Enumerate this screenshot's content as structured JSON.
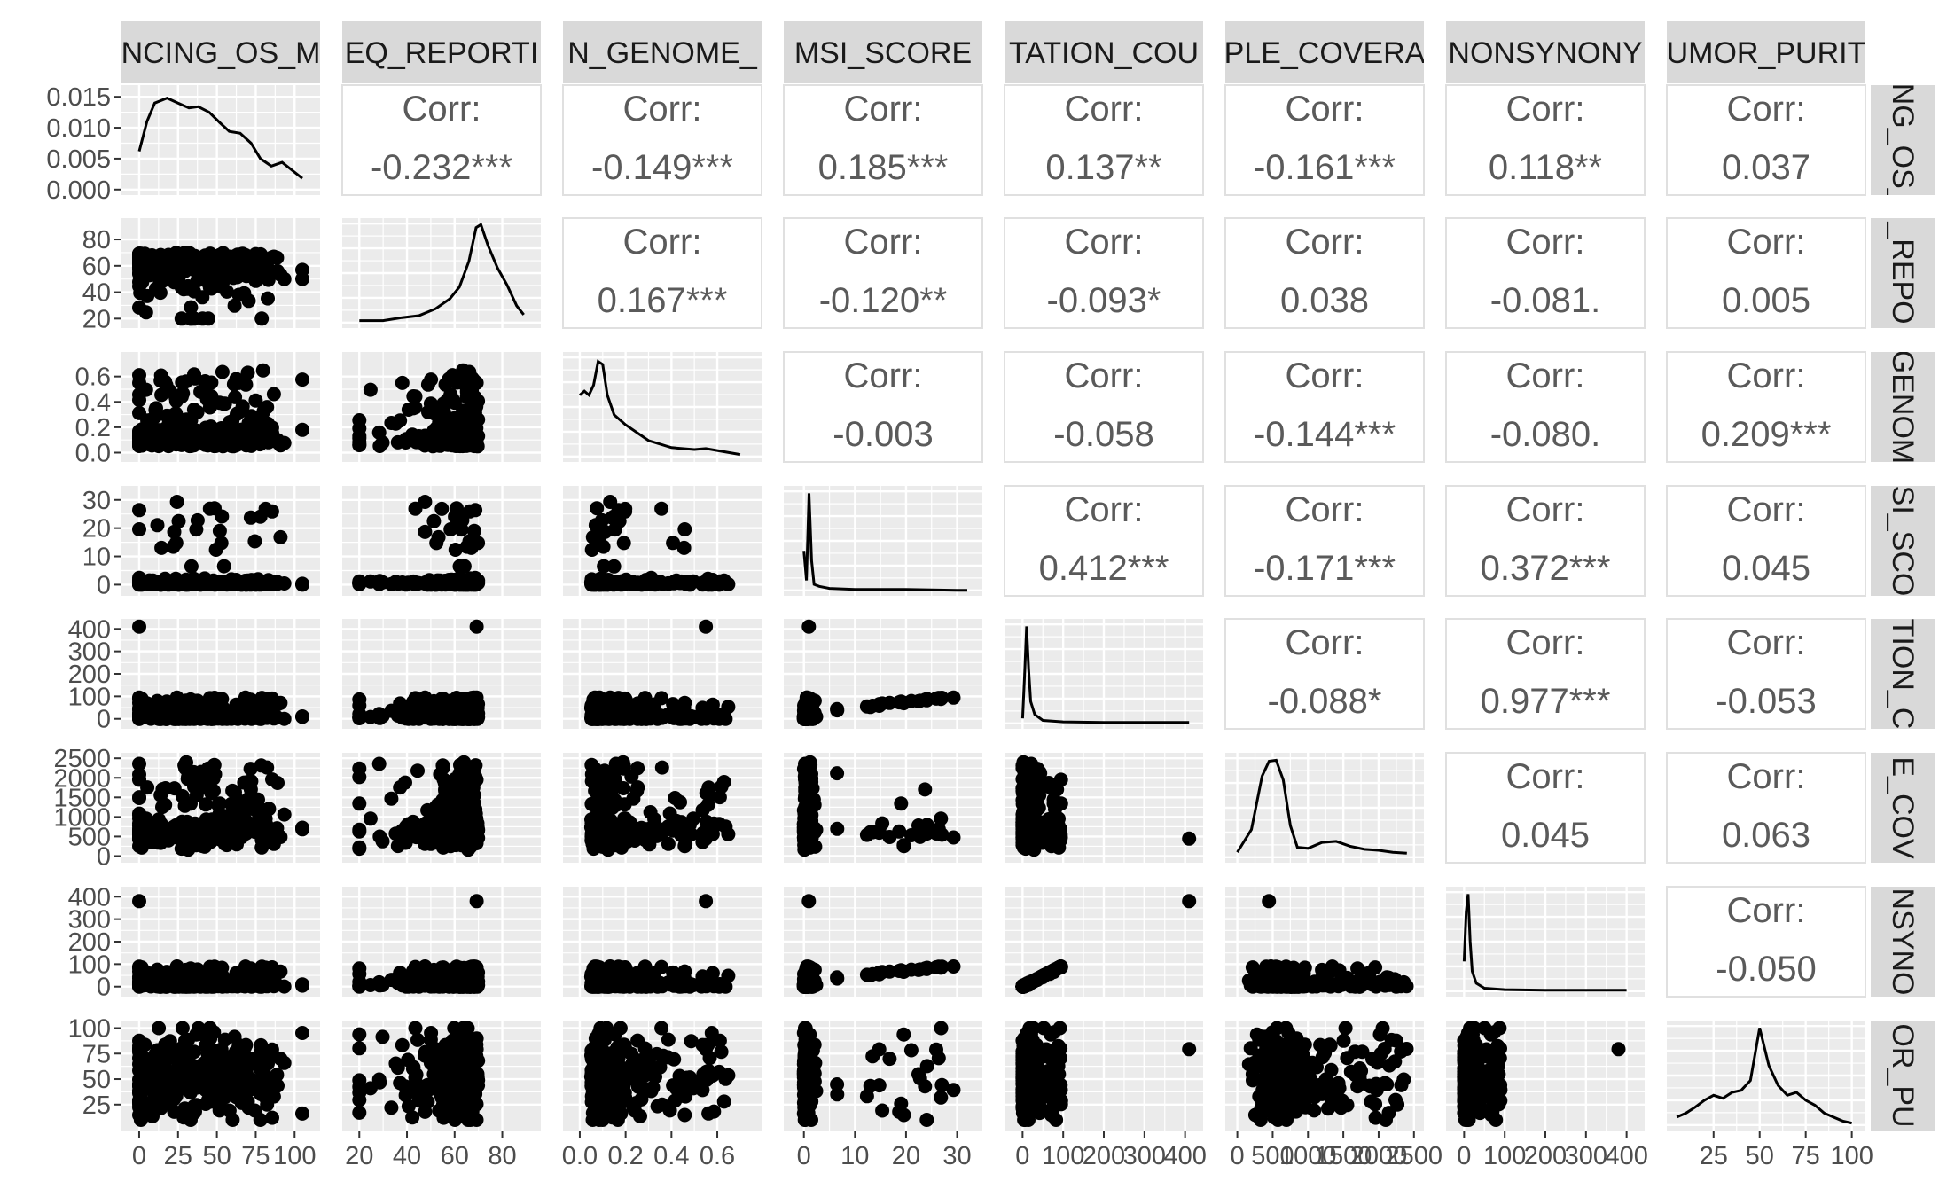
{
  "chart_data": {
    "type": "pairs",
    "title": "",
    "variables": [
      {
        "label": "NCING_OS_M",
        "row_label": "ING_OS_",
        "range": [
          -5,
          110
        ],
        "ticks": [
          0,
          25,
          50,
          75,
          100
        ],
        "tick_labels": [
          "0",
          "25",
          "50",
          "75",
          "100"
        ]
      },
      {
        "label": "EQ_REPORTI",
        "row_label": "_REPO",
        "range": [
          17,
          92
        ],
        "ticks": [
          20,
          40,
          60,
          80
        ],
        "tick_labels": [
          "20",
          "40",
          "60",
          "80"
        ]
      },
      {
        "label": "N_GENOME_",
        "row_label": "GENOM",
        "range": [
          -0.03,
          0.75
        ],
        "ticks": [
          0.0,
          0.2,
          0.4,
          0.6
        ],
        "tick_labels": [
          "0.0",
          "0.2",
          "0.4",
          "0.6"
        ]
      },
      {
        "label": "MSI_SCORE",
        "row_label": "SI_SCO",
        "range": [
          -2,
          33
        ],
        "ticks": [
          0,
          10,
          20,
          30
        ],
        "tick_labels": [
          "0",
          "10",
          "20",
          "30"
        ]
      },
      {
        "label": "TATION_COU",
        "row_label": "TION_C",
        "range": [
          -20,
          420
        ],
        "ticks": [
          0,
          100,
          200,
          300,
          400
        ],
        "tick_labels": [
          "0",
          "100",
          "200",
          "300",
          "400"
        ]
      },
      {
        "label": "PLE_COVERA",
        "row_label": "E_COV",
        "range": [
          -30,
          2500
        ],
        "ticks": [
          0,
          500,
          1000,
          1500,
          2000,
          2500
        ],
        "tick_labels": [
          "0",
          "500",
          "1000",
          "1500",
          "2000",
          "2500"
        ]
      },
      {
        "label": "NONSYNONY",
        "row_label": "NSYNO",
        "range": [
          -20,
          420
        ],
        "ticks": [
          0,
          100,
          200,
          300,
          400
        ],
        "tick_labels": [
          "0",
          "100",
          "200",
          "300",
          "400"
        ]
      },
      {
        "label": "UMOR_PURIT",
        "row_label": "OR_PU",
        "range": [
          5,
          102
        ],
        "ticks": [
          25,
          50,
          75,
          100
        ],
        "tick_labels": [
          "25",
          "50",
          "75",
          "100"
        ]
      }
    ],
    "diag_density_axis": {
      "range": [
        0,
        0.016
      ],
      "ticks": [
        0.0,
        0.005,
        0.01,
        0.015
      ],
      "tick_labels": [
        "0.000",
        "0.005",
        "0.010",
        "0.015"
      ]
    },
    "corr_label": "Corr:",
    "correlations": [
      {
        "row": 0,
        "col": 1,
        "value": "-0.232***"
      },
      {
        "row": 0,
        "col": 2,
        "value": "-0.149***"
      },
      {
        "row": 0,
        "col": 3,
        "value": "0.185***"
      },
      {
        "row": 0,
        "col": 4,
        "value": "0.137**"
      },
      {
        "row": 0,
        "col": 5,
        "value": "-0.161***"
      },
      {
        "row": 0,
        "col": 6,
        "value": "0.118**"
      },
      {
        "row": 0,
        "col": 7,
        "value": "0.037"
      },
      {
        "row": 1,
        "col": 2,
        "value": "0.167***"
      },
      {
        "row": 1,
        "col": 3,
        "value": "-0.120**"
      },
      {
        "row": 1,
        "col": 4,
        "value": "-0.093*"
      },
      {
        "row": 1,
        "col": 5,
        "value": "0.038"
      },
      {
        "row": 1,
        "col": 6,
        "value": "-0.081."
      },
      {
        "row": 1,
        "col": 7,
        "value": "0.005"
      },
      {
        "row": 2,
        "col": 3,
        "value": "-0.003"
      },
      {
        "row": 2,
        "col": 4,
        "value": "-0.058"
      },
      {
        "row": 2,
        "col": 5,
        "value": "-0.144***"
      },
      {
        "row": 2,
        "col": 6,
        "value": "-0.080."
      },
      {
        "row": 2,
        "col": 7,
        "value": "0.209***"
      },
      {
        "row": 3,
        "col": 4,
        "value": "0.412***"
      },
      {
        "row": 3,
        "col": 5,
        "value": "-0.171***"
      },
      {
        "row": 3,
        "col": 6,
        "value": "0.372***"
      },
      {
        "row": 3,
        "col": 7,
        "value": "0.045"
      },
      {
        "row": 4,
        "col": 5,
        "value": "-0.088*"
      },
      {
        "row": 4,
        "col": 6,
        "value": "0.977***"
      },
      {
        "row": 4,
        "col": 7,
        "value": "-0.053"
      },
      {
        "row": 5,
        "col": 6,
        "value": "0.045"
      },
      {
        "row": 5,
        "col": 7,
        "value": "0.063"
      },
      {
        "row": 6,
        "col": 7,
        "value": "-0.050"
      }
    ],
    "densities": [
      {
        "x": [
          0,
          5,
          10,
          18,
          25,
          32,
          38,
          45,
          52,
          58,
          65,
          72,
          78,
          85,
          92,
          98,
          105
        ],
        "y": [
          0.0062,
          0.011,
          0.014,
          0.0148,
          0.014,
          0.0132,
          0.0134,
          0.0125,
          0.0108,
          0.0094,
          0.0091,
          0.0075,
          0.005,
          0.0038,
          0.0044,
          0.0032,
          0.0018
        ]
      },
      {
        "x": [
          20,
          30,
          38,
          45,
          52,
          58,
          62,
          66,
          69,
          71,
          74,
          78,
          82,
          86,
          89
        ],
        "y": [
          0.02,
          0.02,
          0.05,
          0.07,
          0.14,
          0.24,
          0.36,
          0.62,
          0.96,
          0.99,
          0.78,
          0.55,
          0.38,
          0.17,
          0.08
        ]
      },
      {
        "x": [
          0.0,
          0.02,
          0.04,
          0.06,
          0.08,
          0.1,
          0.12,
          0.15,
          0.2,
          0.25,
          0.3,
          0.4,
          0.5,
          0.55,
          0.6,
          0.7
        ],
        "y": [
          0.62,
          0.66,
          0.62,
          0.72,
          0.96,
          0.93,
          0.62,
          0.42,
          0.32,
          0.24,
          0.16,
          0.09,
          0.07,
          0.08,
          0.06,
          0.02
        ]
      },
      {
        "x": [
          0,
          0.5,
          1.0,
          1.5,
          2.0,
          3.0,
          5.0,
          10,
          20,
          30,
          32
        ],
        "y": [
          0.4,
          0.1,
          0.98,
          0.3,
          0.06,
          0.04,
          0.02,
          0.01,
          0.01,
          0.0,
          0.0
        ]
      },
      {
        "x": [
          0,
          5,
          10,
          15,
          20,
          30,
          50,
          100,
          200,
          300,
          410
        ],
        "y": [
          0.05,
          0.5,
          0.98,
          0.55,
          0.22,
          0.09,
          0.03,
          0.015,
          0.01,
          0.01,
          0.01
        ]
      },
      {
        "x": [
          0,
          200,
          350,
          450,
          550,
          650,
          750,
          850,
          1000,
          1200,
          1400,
          1600,
          1800,
          2000,
          2200,
          2400
        ],
        "y": [
          0.05,
          0.28,
          0.82,
          0.97,
          0.98,
          0.78,
          0.32,
          0.1,
          0.09,
          0.15,
          0.16,
          0.11,
          0.08,
          0.07,
          0.05,
          0.04
        ]
      },
      {
        "x": [
          0,
          5,
          10,
          15,
          20,
          30,
          50,
          100,
          200,
          300,
          400
        ],
        "y": [
          0.3,
          0.8,
          0.98,
          0.5,
          0.2,
          0.08,
          0.03,
          0.015,
          0.01,
          0.01,
          0.01
        ]
      },
      {
        "x": [
          5,
          10,
          15,
          20,
          25,
          30,
          35,
          40,
          45,
          50,
          55,
          60,
          65,
          70,
          75,
          80,
          85,
          90,
          95,
          100
        ],
        "y": [
          0.08,
          0.12,
          0.18,
          0.25,
          0.3,
          0.27,
          0.33,
          0.35,
          0.45,
          0.98,
          0.6,
          0.4,
          0.3,
          0.33,
          0.25,
          0.2,
          0.12,
          0.08,
          0.04,
          0.02
        ]
      }
    ]
  }
}
